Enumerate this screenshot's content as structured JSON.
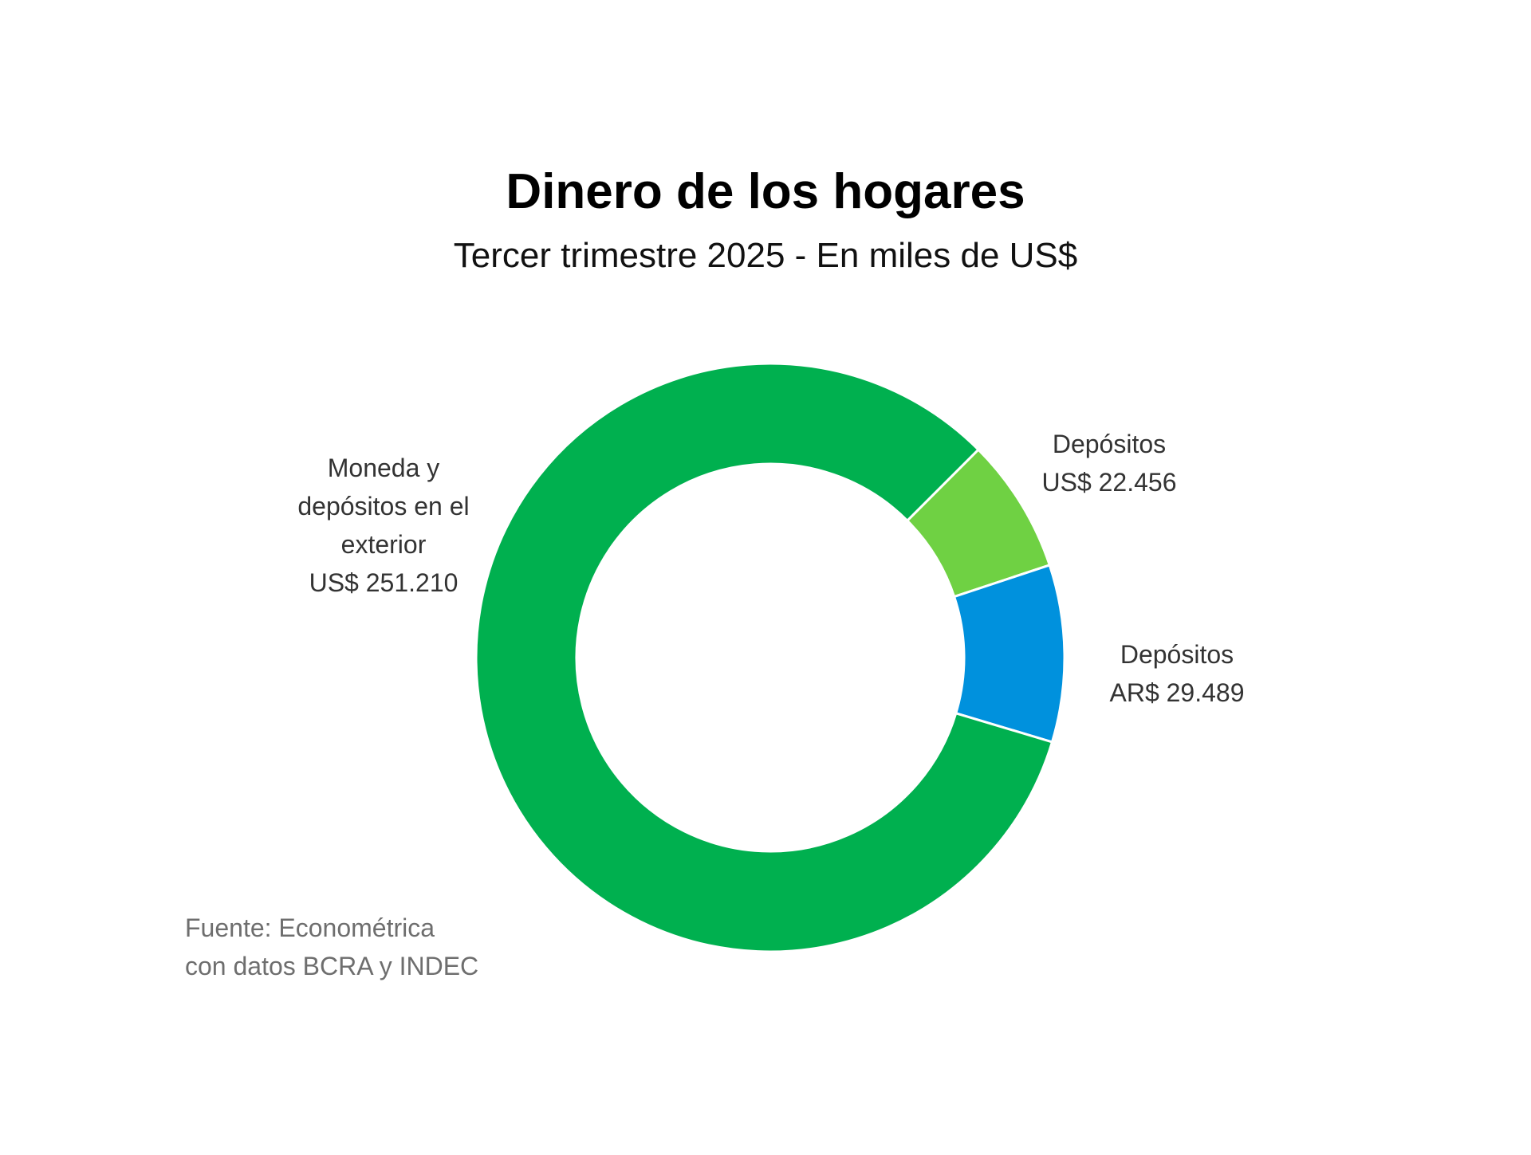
{
  "chart_data": {
    "type": "donut",
    "title": "Dinero de los hogares",
    "subtitle": "Tercer trimestre 2025 - En miles de US$",
    "categories": [
      "Depósitos",
      "Depósitos",
      "Moneda y depósitos en el exterior"
    ],
    "values": [
      22456,
      29489,
      251210
    ],
    "value_labels": [
      "US$ 22.456",
      "AR$ 29.489",
      "US$ 251.210"
    ],
    "colors": [
      "#6fd143",
      "#0091dd",
      "#00b04f"
    ],
    "source": [
      "Fuente: Econométrica",
      "con datos BCRA y INDEC"
    ]
  }
}
